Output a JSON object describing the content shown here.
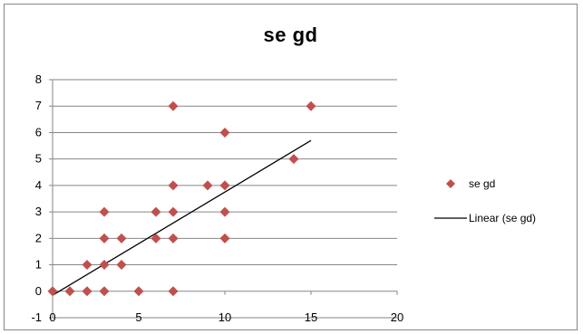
{
  "chart_data": {
    "type": "scatter",
    "title": "se gd",
    "xlabel": "",
    "ylabel": "",
    "xlim": [
      0,
      20
    ],
    "ylim": [
      -1,
      8
    ],
    "xticks": [
      0,
      5,
      10,
      15,
      20
    ],
    "yticks": [
      -1,
      0,
      1,
      2,
      3,
      4,
      5,
      6,
      7,
      8
    ],
    "grid": "horizontal",
    "legend_position": "right",
    "series": [
      {
        "name": "se gd",
        "color": "#c0504d",
        "marker": "diamond",
        "points": [
          [
            0,
            0
          ],
          [
            1,
            0
          ],
          [
            2,
            0
          ],
          [
            3,
            0
          ],
          [
            5,
            0
          ],
          [
            7,
            0
          ],
          [
            2,
            1
          ],
          [
            3,
            1
          ],
          [
            4,
            1
          ],
          [
            3,
            2
          ],
          [
            4,
            2
          ],
          [
            6,
            2
          ],
          [
            7,
            2
          ],
          [
            10,
            2
          ],
          [
            3,
            3
          ],
          [
            6,
            3
          ],
          [
            7,
            3
          ],
          [
            10,
            3
          ],
          [
            7,
            4
          ],
          [
            9,
            4
          ],
          [
            10,
            4
          ],
          [
            14,
            5
          ],
          [
            10,
            6
          ],
          [
            7,
            7
          ],
          [
            15,
            7
          ]
        ]
      }
    ],
    "trendline": {
      "name": "Linear (se gd)",
      "type": "linear",
      "color": "#000000",
      "x": [
        0,
        15
      ],
      "y": [
        -0.15,
        5.7
      ]
    }
  }
}
